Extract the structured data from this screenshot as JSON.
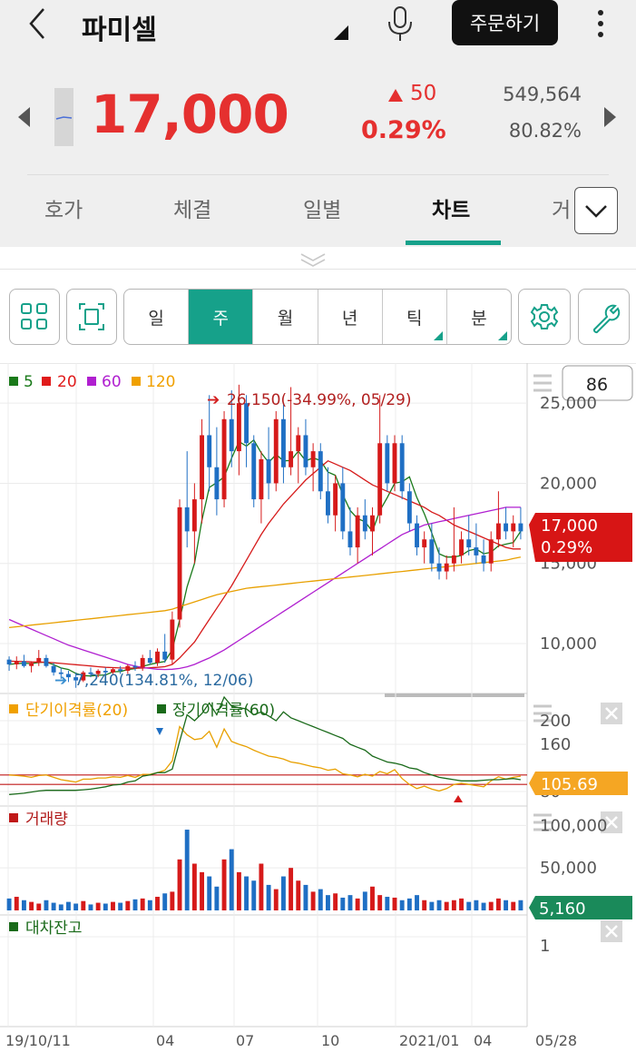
{
  "header": {
    "stock_name": "파미셀",
    "order_button": "주문하기"
  },
  "quote": {
    "price": "17,000",
    "change": "50",
    "change_pct": "0.29%",
    "volume": "549,564",
    "volume_rate": "80.82%"
  },
  "tabs": [
    {
      "label": "호가"
    },
    {
      "label": "체결"
    },
    {
      "label": "일별"
    },
    {
      "label": "차트"
    },
    {
      "label": "거"
    }
  ],
  "period_buttons": [
    {
      "label": "일"
    },
    {
      "label": "주"
    },
    {
      "label": "월"
    },
    {
      "label": "년"
    },
    {
      "label": "틱"
    },
    {
      "label": "분"
    }
  ],
  "colors": {
    "accent": "#16a18a",
    "up": "#e5302f",
    "down": "#1f6fc4"
  },
  "chart_data": {
    "type": "candlestick",
    "price_panel": {
      "legend": [
        {
          "name": "5",
          "color": "#1a7a1a"
        },
        {
          "name": "20",
          "color": "#e01b1b"
        },
        {
          "name": "60",
          "color": "#b01fd0"
        },
        {
          "name": "120",
          "color": "#f0a000"
        }
      ],
      "count_box": "86",
      "y_ticks": [
        "25,000",
        "20,000",
        "15,000",
        "10,000"
      ],
      "ylim": [
        7000,
        27500
      ],
      "high_annotation": "26,150(-34.99%, 05/29)",
      "low_annotation": "7,240(134.81%, 12/06)",
      "last_price": "17,000",
      "last_pct": "0.29%"
    },
    "disparity_panel": {
      "legend": [
        {
          "name": "단기이격률(20)",
          "color": "#f0a000"
        },
        {
          "name": "장기이격률(60)",
          "color": "#1a6a1a"
        }
      ],
      "y_ticks": [
        "200",
        "160",
        "80"
      ],
      "last_value": "105.69"
    },
    "volume_panel": {
      "title": "거래량",
      "y_ticks": [
        "100,000",
        "50,000"
      ],
      "last_value": "5,160"
    },
    "loan_panel": {
      "title": "대차잔고",
      "y_ticks": [
        "1"
      ]
    },
    "x_ticks": [
      "19/10/11",
      "04",
      "07",
      "10",
      "2021/01",
      "04",
      "05/28"
    ],
    "candles": [
      [
        9000,
        9200,
        8300,
        8700
      ],
      [
        8700,
        9200,
        8400,
        8900
      ],
      [
        8900,
        9300,
        8500,
        8600
      ],
      [
        8600,
        8900,
        8200,
        8800
      ],
      [
        8800,
        9600,
        8600,
        9100
      ],
      [
        9100,
        9300,
        8500,
        8600
      ],
      [
        8600,
        8800,
        8000,
        8200
      ],
      [
        8200,
        8500,
        7800,
        8100
      ],
      [
        8100,
        8300,
        7600,
        7900
      ],
      [
        7900,
        8200,
        7240,
        7700
      ],
      [
        7700,
        8300,
        7600,
        8200
      ],
      [
        8200,
        8500,
        7900,
        8100
      ],
      [
        8100,
        8400,
        7900,
        8300
      ],
      [
        8300,
        8500,
        8000,
        8200
      ],
      [
        8200,
        8500,
        8100,
        8400
      ],
      [
        8400,
        8600,
        8100,
        8300
      ],
      [
        8300,
        8700,
        8100,
        8600
      ],
      [
        8600,
        8900,
        8300,
        8500
      ],
      [
        8500,
        9300,
        8300,
        9100
      ],
      [
        9100,
        9600,
        8700,
        8800
      ],
      [
        8800,
        9700,
        8600,
        9500
      ],
      [
        9500,
        10600,
        8800,
        9000
      ],
      [
        9000,
        12000,
        8700,
        11500
      ],
      [
        11500,
        19000,
        11000,
        18500
      ],
      [
        18500,
        22000,
        16000,
        17000
      ],
      [
        17000,
        20000,
        15000,
        19000
      ],
      [
        19000,
        24000,
        17500,
        23000
      ],
      [
        23000,
        25500,
        19500,
        21000
      ],
      [
        21000,
        23500,
        18000,
        19000
      ],
      [
        19000,
        24500,
        18500,
        24000
      ],
      [
        24000,
        25800,
        21000,
        22000
      ],
      [
        22000,
        26150,
        20500,
        25000
      ],
      [
        25000,
        25500,
        21000,
        22500
      ],
      [
        22500,
        23000,
        18500,
        19000
      ],
      [
        19000,
        22000,
        17500,
        21500
      ],
      [
        21500,
        23500,
        19000,
        20000
      ],
      [
        20000,
        24500,
        19500,
        24000
      ],
      [
        24000,
        25000,
        20000,
        21000
      ],
      [
        21000,
        26000,
        20500,
        22000
      ],
      [
        22000,
        23500,
        20000,
        23000
      ],
      [
        23000,
        24000,
        20500,
        21000
      ],
      [
        21000,
        22500,
        19500,
        22000
      ],
      [
        22000,
        22500,
        19000,
        19500
      ],
      [
        19500,
        21000,
        17500,
        18000
      ],
      [
        18000,
        20500,
        17000,
        20000
      ],
      [
        20000,
        21000,
        16500,
        17000
      ],
      [
        17000,
        18500,
        15500,
        16000
      ],
      [
        16000,
        18500,
        15000,
        18000
      ],
      [
        18000,
        19000,
        16500,
        17000
      ],
      [
        17000,
        18500,
        15500,
        18000
      ],
      [
        18000,
        25500,
        17500,
        22500
      ],
      [
        22500,
        23000,
        19500,
        20000
      ],
      [
        20000,
        23000,
        19500,
        22500
      ],
      [
        22500,
        23000,
        19000,
        19500
      ],
      [
        19500,
        20000,
        17000,
        17500
      ],
      [
        17500,
        18000,
        15500,
        16000
      ],
      [
        16000,
        17000,
        15000,
        16500
      ],
      [
        16500,
        17500,
        14500,
        15000
      ],
      [
        15000,
        16000,
        14000,
        14500
      ],
      [
        14500,
        15500,
        14000,
        15000
      ],
      [
        15000,
        18500,
        14500,
        15500
      ],
      [
        15500,
        17000,
        15000,
        16500
      ],
      [
        16500,
        18000,
        15500,
        16000
      ],
      [
        16000,
        17500,
        15000,
        15500
      ],
      [
        15500,
        16500,
        14500,
        15000
      ],
      [
        15000,
        17000,
        14500,
        16500
      ],
      [
        16500,
        19500,
        16000,
        17500
      ],
      [
        17500,
        18500,
        16500,
        17000
      ],
      [
        17000,
        18000,
        16000,
        17500
      ],
      [
        17500,
        18500,
        16500,
        17000
      ]
    ],
    "volumes": [
      14,
      16,
      12,
      10,
      8,
      12,
      9,
      7,
      10,
      8,
      11,
      7,
      9,
      8,
      10,
      9,
      11,
      13,
      14,
      12,
      16,
      20,
      22,
      60,
      95,
      55,
      45,
      40,
      28,
      60,
      72,
      45,
      40,
      35,
      55,
      30,
      25,
      40,
      50,
      35,
      30,
      22,
      25,
      18,
      20,
      15,
      18,
      14,
      22,
      28,
      18,
      16,
      15,
      12,
      14,
      18,
      12,
      10,
      12,
      10,
      12,
      14,
      10,
      12,
      9,
      10,
      14,
      12,
      10,
      12
    ],
    "ma": {
      "ma5": [
        8700,
        8750,
        8770,
        8750,
        8820,
        8840,
        8680,
        8480,
        8380,
        8140,
        8000,
        7980,
        8020,
        8040,
        8240,
        8260,
        8380,
        8440,
        8580,
        8700,
        8800,
        8880,
        9620,
        11480,
        13540,
        15000,
        17680,
        19740,
        20040,
        20400,
        21560,
        22600,
        22320,
        22700,
        21900,
        21300,
        21800,
        21400,
        21420,
        22000,
        21400,
        21580,
        21420,
        20700,
        20500,
        19300,
        18300,
        17800,
        17600,
        17000,
        18300,
        19100,
        20000,
        20100,
        20400,
        19100,
        18100,
        16900,
        15600,
        15400,
        15400,
        15500,
        15800,
        15900,
        15600,
        15700,
        16100,
        16200,
        16300,
        17000
      ],
      "ma20": [
        8900,
        8890,
        8880,
        8860,
        8850,
        8830,
        8800,
        8760,
        8720,
        8680,
        8640,
        8600,
        8560,
        8520,
        8500,
        8480,
        8470,
        8460,
        8470,
        8490,
        8520,
        8560,
        8700,
        9100,
        9600,
        10100,
        10800,
        11500,
        12200,
        12900,
        13600,
        14400,
        15200,
        16000,
        16800,
        17500,
        18100,
        18700,
        19200,
        19700,
        20200,
        20600,
        21000,
        21400,
        21200,
        21000,
        20800,
        20500,
        20200,
        19900,
        19700,
        19500,
        19300,
        19100,
        18900,
        18700,
        18500,
        18200,
        18000,
        17700,
        17400,
        17200,
        17000,
        16800,
        16600,
        16400,
        16200,
        16000,
        15900,
        15900
      ],
      "ma60": [
        11500,
        11300,
        11100,
        10900,
        10700,
        10500,
        10300,
        10100,
        9900,
        9750,
        9600,
        9450,
        9300,
        9150,
        9000,
        8850,
        8700,
        8600,
        8500,
        8450,
        8400,
        8380,
        8400,
        8450,
        8550,
        8700,
        8900,
        9100,
        9350,
        9600,
        9900,
        10200,
        10500,
        10800,
        11100,
        11400,
        11700,
        12000,
        12300,
        12600,
        12900,
        13200,
        13500,
        13800,
        14100,
        14400,
        14700,
        15000,
        15300,
        15600,
        15900,
        16200,
        16500,
        16800,
        17000,
        17200,
        17400,
        17500,
        17600,
        17700,
        17800,
        17900,
        18000,
        18100,
        18200,
        18300,
        18400,
        18500,
        18500,
        18500
      ],
      "ma120": [
        11000,
        11050,
        11100,
        11150,
        11200,
        11250,
        11300,
        11350,
        11400,
        11450,
        11500,
        11550,
        11600,
        11650,
        11700,
        11750,
        11800,
        11850,
        11900,
        11950,
        12000,
        12050,
        12150,
        12300,
        12450,
        12600,
        12750,
        12900,
        13050,
        13150,
        13250,
        13350,
        13450,
        13500,
        13550,
        13600,
        13650,
        13700,
        13750,
        13800,
        13850,
        13900,
        13950,
        14000,
        14050,
        14100,
        14150,
        14200,
        14250,
        14300,
        14350,
        14400,
        14450,
        14500,
        14550,
        14600,
        14650,
        14700,
        14750,
        14800,
        14850,
        14900,
        14950,
        15000,
        15050,
        15100,
        15150,
        15200,
        15300,
        15400
      ]
    },
    "disparity_short": [
      108,
      107,
      106,
      104,
      107,
      108,
      104,
      100,
      98,
      96,
      101,
      101,
      103,
      103,
      105,
      104,
      107,
      104,
      109,
      109,
      112,
      116,
      132,
      190,
      176,
      168,
      170,
      182,
      155,
      186,
      165,
      160,
      156,
      150,
      145,
      140,
      138,
      135,
      130,
      128,
      125,
      122,
      120,
      116,
      118,
      110,
      108,
      105,
      109,
      106,
      114,
      110,
      117,
      102,
      92,
      85,
      89,
      84,
      81,
      85,
      92,
      94,
      92,
      90,
      88,
      98,
      105,
      101,
      104,
      106
    ],
    "disparity_long": [
      75,
      76,
      77,
      79,
      81,
      82,
      82,
      82,
      82,
      82,
      83,
      84,
      86,
      88,
      91,
      92,
      96,
      98,
      106,
      108,
      112,
      112,
      118,
      165,
      210,
      200,
      212,
      230,
      210,
      240,
      225,
      222,
      220,
      210,
      215,
      208,
      200,
      215,
      205,
      200,
      195,
      190,
      185,
      180,
      175,
      170,
      160,
      155,
      150,
      140,
      135,
      130,
      128,
      125,
      120,
      118,
      112,
      108,
      104,
      102,
      100,
      98,
      98,
      98,
      99,
      100,
      100,
      101,
      102,
      100
    ]
  }
}
